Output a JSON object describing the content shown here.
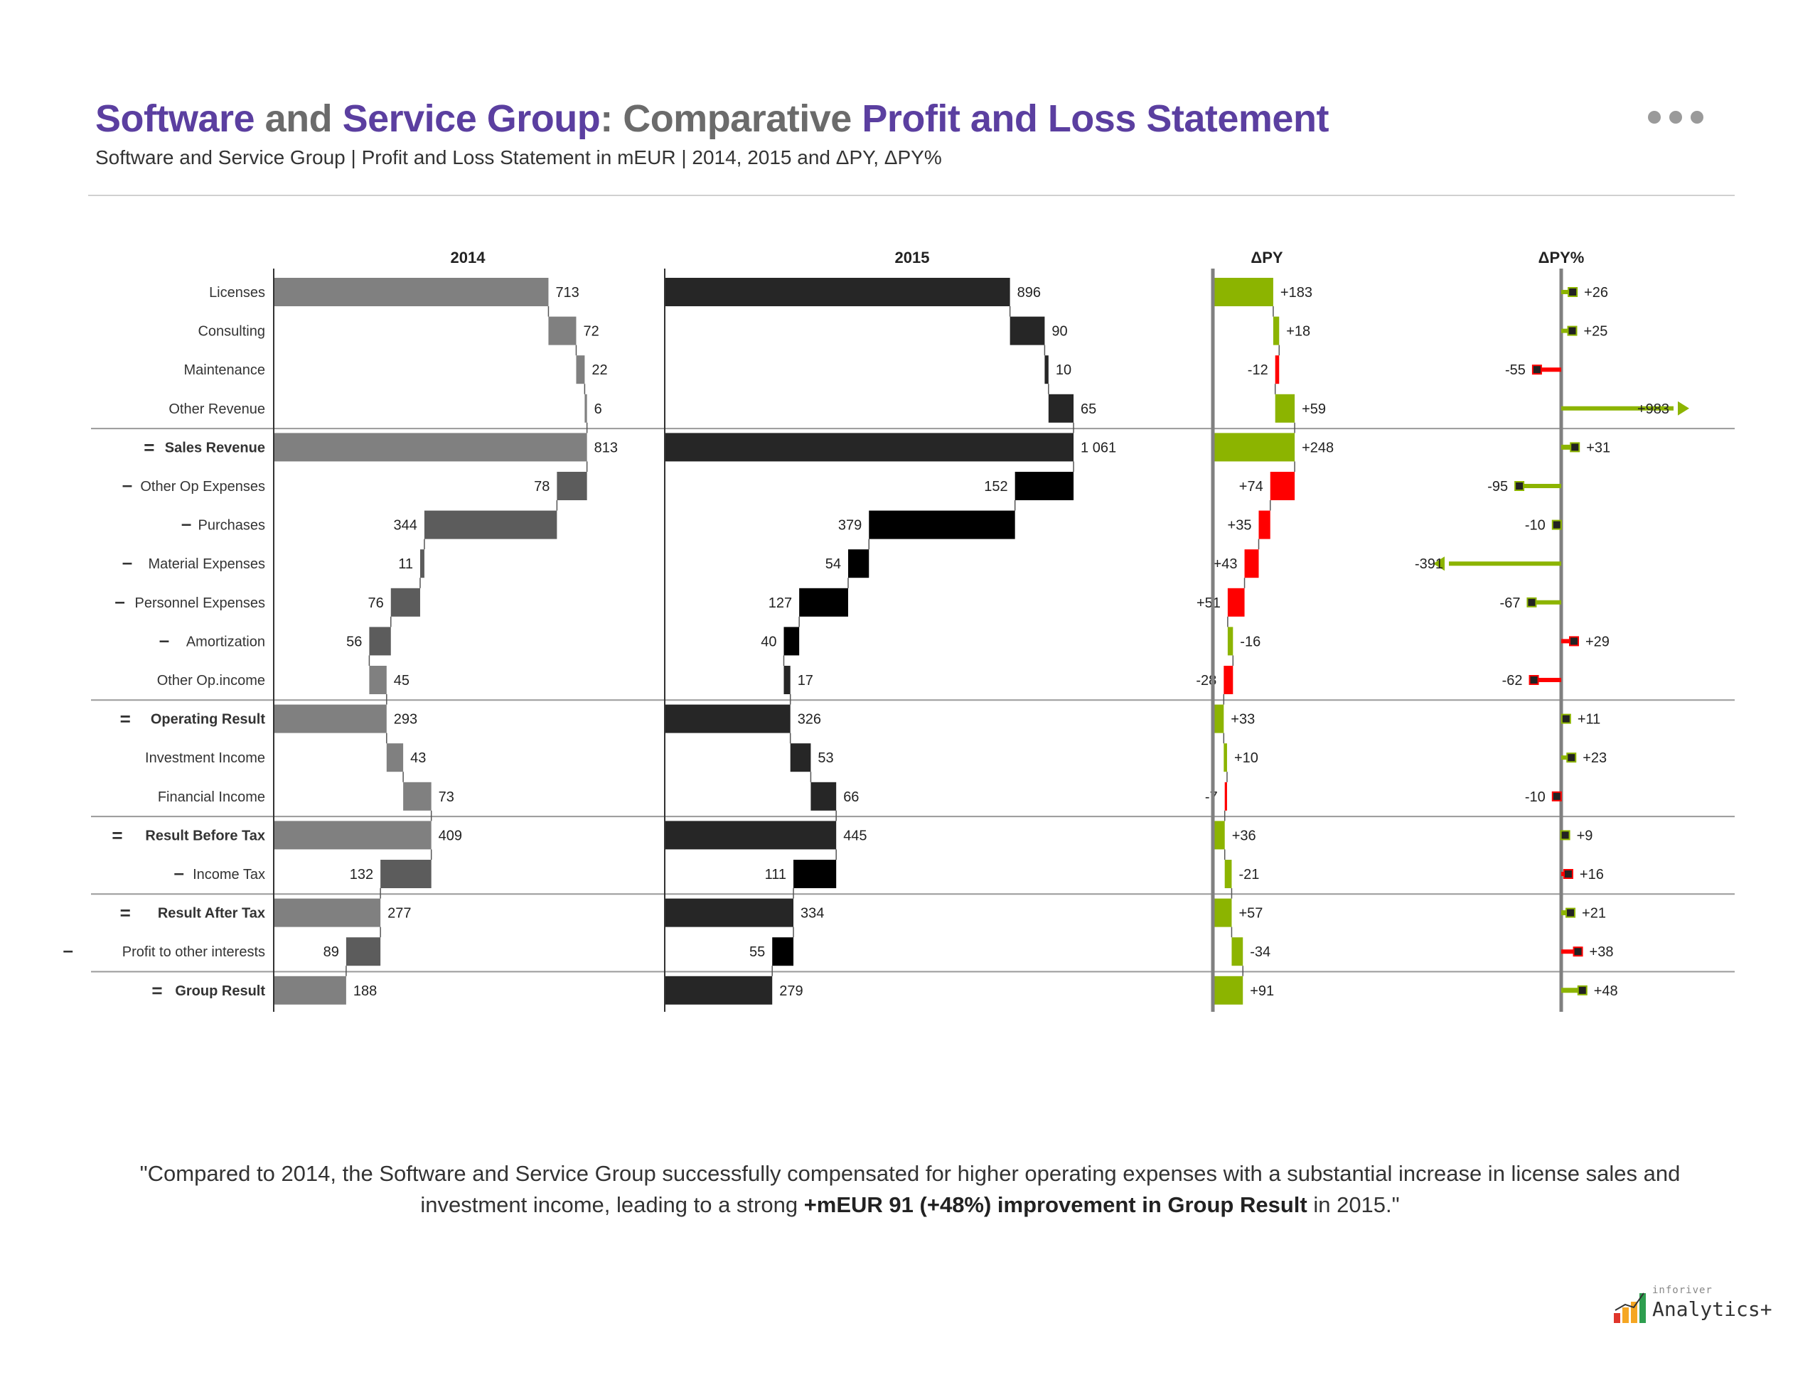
{
  "header": {
    "title_parts": [
      {
        "text": "Software",
        "color": "#5b3fa0"
      },
      {
        "text": " and ",
        "color": "#6b6b6b"
      },
      {
        "text": "Service Group",
        "color": "#5b3fa0"
      },
      {
        "text": ": Comparative ",
        "color": "#6b6b6b"
      },
      {
        "text": "Profit and Loss Statement",
        "color": "#5b3fa0"
      }
    ],
    "subtitle": "Software and Service Group | Profit and Loss Statement in mEUR | 2014, 2015 and ΔPY, ΔPY%",
    "menu_icon": "more-dots-icon"
  },
  "colors": {
    "py": "#808080",
    "py_sub": "#5c5c5c",
    "ac": "#262626",
    "ac_sub": "#000000",
    "good": "#8cb400",
    "bad": "#ff0000",
    "axis": "#808080",
    "separator": "#9a9a9a",
    "title_purple": "#5b3fa0"
  },
  "chart_data": {
    "type": "table",
    "unit": "mEUR",
    "column_headers": [
      "2014",
      "2015",
      "ΔPY",
      "ΔPY%"
    ],
    "rows": [
      {
        "label": "Licenses",
        "op": "",
        "bold": false,
        "py": 713,
        "ac": 896,
        "py_label": "713",
        "ac_label": "896",
        "delta": 183,
        "delta_label": "+183",
        "delta_good": true,
        "pct": 26,
        "pct_label": "+26",
        "pct_good": true,
        "sep_before": false
      },
      {
        "label": "Consulting",
        "op": "",
        "bold": false,
        "py": 72,
        "ac": 90,
        "py_label": "72",
        "ac_label": "90",
        "delta": 18,
        "delta_label": "+18",
        "delta_good": true,
        "pct": 25,
        "pct_label": "+25",
        "pct_good": true,
        "sep_before": false
      },
      {
        "label": "Maintenance",
        "op": "",
        "bold": false,
        "py": 22,
        "ac": 10,
        "py_label": "22",
        "ac_label": "10",
        "delta": -12,
        "delta_label": "-12",
        "delta_good": false,
        "pct": -55,
        "pct_label": "-55",
        "pct_good": false,
        "sep_before": false
      },
      {
        "label": "Other Revenue",
        "op": "",
        "bold": false,
        "py": 6,
        "ac": 65,
        "py_label": "6",
        "ac_label": "65",
        "delta": 59,
        "delta_label": "+59",
        "delta_good": true,
        "pct": 983,
        "pct_label": "+983",
        "pct_good": true,
        "pct_clipped": true,
        "sep_before": false
      },
      {
        "label": "Sales Revenue",
        "op": "=",
        "bold": true,
        "py": 813,
        "ac": 1061,
        "py_label": "813",
        "ac_label": "1 061",
        "delta": 248,
        "delta_label": "+248",
        "delta_good": true,
        "pct": 31,
        "pct_label": "+31",
        "pct_good": true,
        "sep_before": true
      },
      {
        "label": "Other Op Expenses",
        "op": "-",
        "bold": false,
        "py": 78,
        "ac": 152,
        "py_label": "78",
        "ac_label": "152",
        "delta": 74,
        "delta_label": "+74",
        "delta_good": false,
        "pct": -95,
        "pct_label": "-95",
        "pct_good": true,
        "sep_before": false
      },
      {
        "label": "Purchases",
        "op": "-",
        "bold": false,
        "py": 344,
        "ac": 379,
        "py_label": "344",
        "ac_label": "379",
        "delta": 35,
        "delta_label": "+35",
        "delta_good": false,
        "pct": -10,
        "pct_label": "-10",
        "pct_good": true,
        "sep_before": false
      },
      {
        "label": "Material Expenses",
        "op": "-",
        "bold": false,
        "py": 11,
        "ac": 54,
        "py_label": "11",
        "ac_label": "54",
        "delta": 43,
        "delta_label": "+43",
        "delta_good": false,
        "pct": -391,
        "pct_label": "-391",
        "pct_good": true,
        "pct_clipped": true,
        "sep_before": false
      },
      {
        "label": "Personnel Expenses",
        "op": "-",
        "bold": false,
        "py": 76,
        "ac": 127,
        "py_label": "76",
        "ac_label": "127",
        "delta": 51,
        "delta_label": "+51",
        "delta_good": false,
        "pct": -67,
        "pct_label": "-67",
        "pct_good": true,
        "sep_before": false
      },
      {
        "label": "Amortization",
        "op": "-",
        "bold": false,
        "py": 56,
        "ac": 40,
        "py_label": "56",
        "ac_label": "40",
        "delta": -16,
        "delta_label": "-16",
        "delta_good": true,
        "pct": 29,
        "pct_label": "+29",
        "pct_good": false,
        "sep_before": false
      },
      {
        "label": "Other Op.income",
        "op": "",
        "bold": false,
        "py": 45,
        "ac": 17,
        "py_label": "45",
        "ac_label": "17",
        "delta": -28,
        "delta_label": "-28",
        "delta_good": false,
        "pct": -62,
        "pct_label": "-62",
        "pct_good": false,
        "sep_before": false
      },
      {
        "label": "Operating Result",
        "op": "=",
        "bold": true,
        "py": 293,
        "ac": 326,
        "py_label": "293",
        "ac_label": "326",
        "delta": 33,
        "delta_label": "+33",
        "delta_good": true,
        "pct": 11,
        "pct_label": "+11",
        "pct_good": true,
        "sep_before": true
      },
      {
        "label": "Investment Income",
        "op": "",
        "bold": false,
        "py": 43,
        "ac": 53,
        "py_label": "43",
        "ac_label": "53",
        "delta": 10,
        "delta_label": "+10",
        "delta_good": true,
        "pct": 23,
        "pct_label": "+23",
        "pct_good": true,
        "sep_before": false
      },
      {
        "label": "Financial Income",
        "op": "",
        "bold": false,
        "py": 73,
        "ac": 66,
        "py_label": "73",
        "ac_label": "66",
        "delta": -7,
        "delta_label": "-7",
        "delta_good": false,
        "pct": -10,
        "pct_label": "-10",
        "pct_good": false,
        "sep_before": false
      },
      {
        "label": "Result Before Tax",
        "op": "=",
        "bold": true,
        "py": 409,
        "ac": 445,
        "py_label": "409",
        "ac_label": "445",
        "delta": 36,
        "delta_label": "+36",
        "delta_good": true,
        "pct": 9,
        "pct_label": "+9",
        "pct_good": true,
        "sep_before": true
      },
      {
        "label": "Income Tax",
        "op": "-",
        "bold": false,
        "py": 132,
        "ac": 111,
        "py_label": "132",
        "ac_label": "111",
        "delta": -21,
        "delta_label": "-21",
        "delta_good": true,
        "pct": 16,
        "pct_label": "+16",
        "pct_good": false,
        "sep_before": false
      },
      {
        "label": "Result After Tax",
        "op": "=",
        "bold": true,
        "py": 277,
        "ac": 334,
        "py_label": "277",
        "ac_label": "334",
        "delta": 57,
        "delta_label": "+57",
        "delta_good": true,
        "pct": 21,
        "pct_label": "+21",
        "pct_good": true,
        "sep_before": true
      },
      {
        "label": "Profit to other interests",
        "op": "-",
        "bold": false,
        "py": 89,
        "ac": 55,
        "py_label": "89",
        "ac_label": "55",
        "delta": -34,
        "delta_label": "-34",
        "delta_good": true,
        "pct": 38,
        "pct_label": "+38",
        "pct_good": false,
        "sep_before": false
      },
      {
        "label": "Group Result",
        "op": "=",
        "bold": true,
        "py": 188,
        "ac": 279,
        "py_label": "188",
        "ac_label": "279",
        "delta": 91,
        "delta_label": "+91",
        "delta_good": true,
        "pct": 48,
        "pct_label": "+48",
        "pct_good": true,
        "sep_before": true
      }
    ]
  },
  "footer": {
    "quote_start": "\"Compared to 2014, the Software and Service Group successfully compensated for higher operating expenses with a substantial increase in license sales and investment income, leading to a strong ",
    "quote_bold": "+mEUR 91 (+48%) improvement in Group Result",
    "quote_end": " in 2015.\""
  },
  "logo": {
    "small_text": "inforiver",
    "big_text": "Analytics+",
    "icon": "bar-chart-logo-icon"
  }
}
